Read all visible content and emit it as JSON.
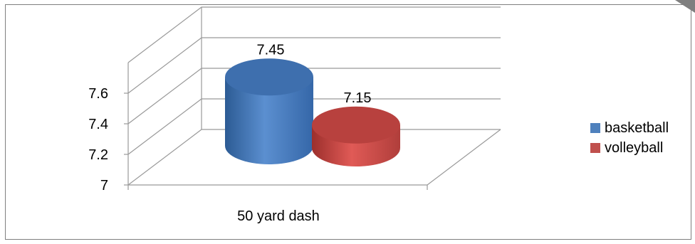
{
  "chart_data": {
    "type": "bar",
    "style": "3d-cylinder",
    "categories": [
      "50 yard dash"
    ],
    "series": [
      {
        "name": "basketball",
        "values": [
          7.45
        ],
        "color": "#4f81bd"
      },
      {
        "name": "volleyball",
        "values": [
          7.15
        ],
        "color": "#c0504d"
      }
    ],
    "data_labels": [
      "7.45",
      "7.15"
    ],
    "yticks": [
      7,
      7.2,
      7.4,
      7.6
    ],
    "ytick_labels": [
      "7",
      "7.2",
      "7.4",
      "7.6"
    ],
    "ylim": [
      7,
      7.8
    ],
    "grid": true,
    "legend": "right"
  }
}
